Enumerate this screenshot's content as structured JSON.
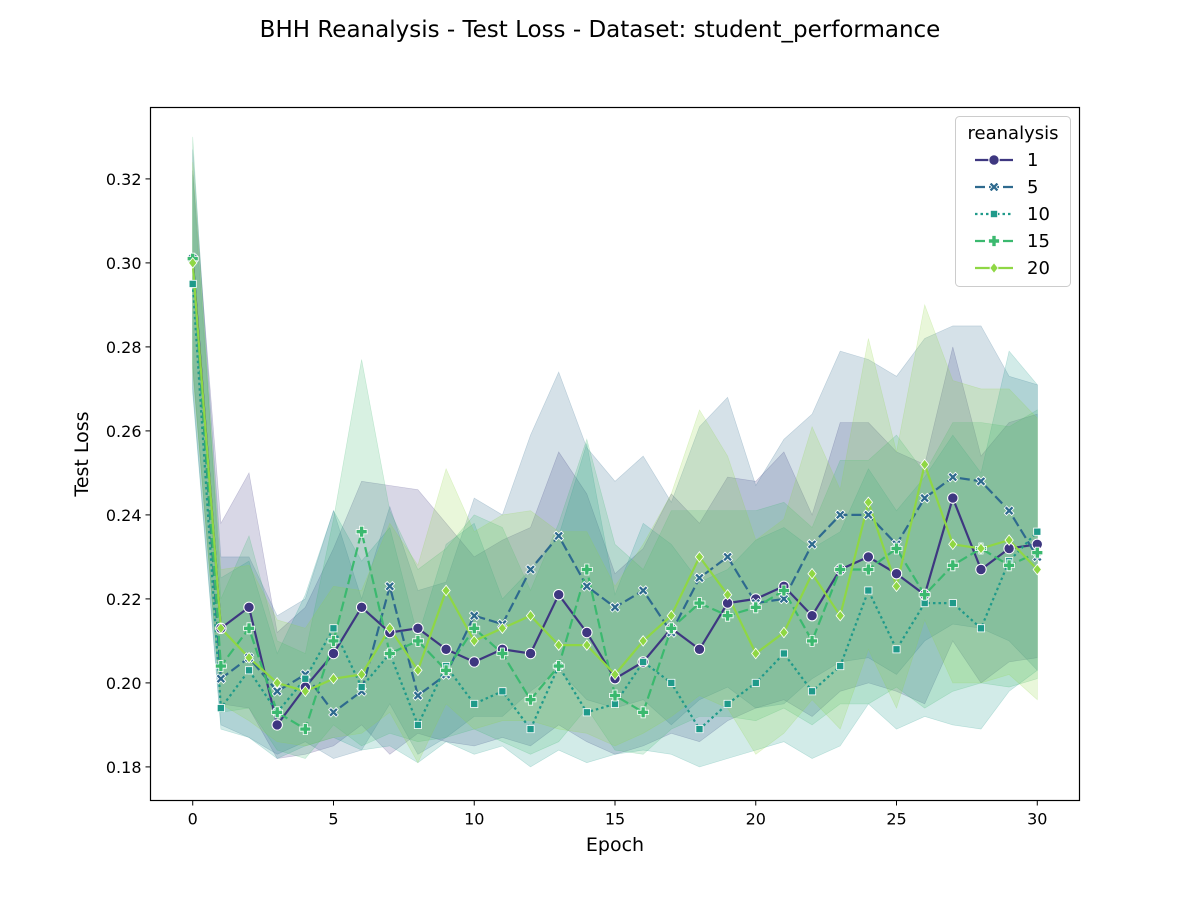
{
  "chart_data": {
    "type": "line",
    "title": "BHH Reanalysis - Test Loss - Dataset: student_performance",
    "xlabel": "Epoch",
    "ylabel": "Test Loss",
    "xlim": [
      -1.5,
      31.5
    ],
    "ylim": [
      0.172,
      0.337
    ],
    "xticks": [
      0,
      5,
      10,
      15,
      20,
      25,
      30
    ],
    "yticks": [
      0.18,
      0.2,
      0.22,
      0.24,
      0.26,
      0.28,
      0.3,
      0.32
    ],
    "ytick_labels": [
      "0.18",
      "0.20",
      "0.22",
      "0.24",
      "0.26",
      "0.28",
      "0.30",
      "0.32"
    ],
    "legend_title": "reanalysis",
    "legend_position": "top-right",
    "x": [
      0,
      1,
      2,
      3,
      4,
      5,
      6,
      7,
      8,
      9,
      10,
      11,
      12,
      13,
      14,
      15,
      16,
      17,
      18,
      19,
      20,
      21,
      22,
      23,
      24,
      25,
      26,
      27,
      28,
      29,
      30
    ],
    "series": [
      {
        "name": "1",
        "color": "#3e3780",
        "dash": "solid",
        "marker": "circle",
        "values": [
          0.301,
          0.213,
          0.218,
          0.19,
          0.199,
          0.207,
          0.218,
          0.212,
          0.213,
          0.208,
          0.205,
          0.208,
          0.207,
          0.221,
          0.212,
          0.201,
          0.205,
          0.213,
          0.208,
          0.219,
          0.22,
          0.223,
          0.216,
          0.227,
          0.23,
          0.226,
          0.221,
          0.244,
          0.227,
          0.232,
          0.233
        ],
        "lower": [
          0.275,
          0.195,
          0.194,
          0.182,
          0.183,
          0.185,
          0.19,
          0.183,
          0.188,
          0.186,
          0.185,
          0.187,
          0.185,
          0.19,
          0.186,
          0.183,
          0.185,
          0.188,
          0.186,
          0.191,
          0.194,
          0.196,
          0.192,
          0.198,
          0.2,
          0.198,
          0.195,
          0.21,
          0.2,
          0.205,
          0.206
        ],
        "upper": [
          0.322,
          0.238,
          0.25,
          0.212,
          0.218,
          0.232,
          0.248,
          0.247,
          0.246,
          0.238,
          0.23,
          0.234,
          0.237,
          0.255,
          0.245,
          0.226,
          0.232,
          0.245,
          0.238,
          0.249,
          0.248,
          0.255,
          0.24,
          0.262,
          0.262,
          0.255,
          0.252,
          0.28,
          0.254,
          0.262,
          0.264
        ]
      },
      {
        "name": "5",
        "color": "#2e6a8e",
        "dash": "dashed",
        "marker": "x",
        "values": [
          0.301,
          0.201,
          0.206,
          0.198,
          0.202,
          0.193,
          0.198,
          0.223,
          0.197,
          0.202,
          0.216,
          0.214,
          0.227,
          0.235,
          0.223,
          0.218,
          0.222,
          0.212,
          0.225,
          0.23,
          0.219,
          0.22,
          0.233,
          0.24,
          0.24,
          0.233,
          0.244,
          0.249,
          0.248,
          0.241,
          0.23
        ],
        "lower": [
          0.27,
          0.19,
          0.187,
          0.183,
          0.186,
          0.182,
          0.184,
          0.195,
          0.183,
          0.187,
          0.192,
          0.192,
          0.198,
          0.203,
          0.196,
          0.194,
          0.196,
          0.19,
          0.196,
          0.199,
          0.194,
          0.195,
          0.201,
          0.205,
          0.206,
          0.202,
          0.21,
          0.214,
          0.213,
          0.21,
          0.203
        ],
        "upper": [
          0.327,
          0.23,
          0.23,
          0.216,
          0.22,
          0.241,
          0.22,
          0.242,
          0.222,
          0.224,
          0.244,
          0.24,
          0.259,
          0.274,
          0.256,
          0.248,
          0.254,
          0.243,
          0.261,
          0.268,
          0.247,
          0.258,
          0.264,
          0.279,
          0.277,
          0.273,
          0.282,
          0.285,
          0.285,
          0.273,
          0.271
        ]
      },
      {
        "name": "10",
        "color": "#1f9a8a",
        "dash": "dotted",
        "marker": "square",
        "values": [
          0.295,
          0.194,
          0.203,
          0.193,
          0.201,
          0.213,
          0.199,
          0.207,
          0.19,
          0.204,
          0.195,
          0.198,
          0.189,
          0.204,
          0.193,
          0.195,
          0.205,
          0.2,
          0.189,
          0.195,
          0.2,
          0.207,
          0.198,
          0.204,
          0.222,
          0.208,
          0.219,
          0.219,
          0.213,
          0.229,
          0.236
        ],
        "lower": [
          0.269,
          0.189,
          0.187,
          0.182,
          0.185,
          0.187,
          0.184,
          0.185,
          0.181,
          0.186,
          0.183,
          0.185,
          0.18,
          0.184,
          0.181,
          0.183,
          0.184,
          0.183,
          0.18,
          0.182,
          0.184,
          0.186,
          0.182,
          0.185,
          0.195,
          0.189,
          0.192,
          0.19,
          0.189,
          0.198,
          0.203
        ],
        "upper": [
          0.321,
          0.225,
          0.229,
          0.207,
          0.221,
          0.241,
          0.229,
          0.237,
          0.211,
          0.233,
          0.238,
          0.22,
          0.227,
          0.235,
          0.257,
          0.221,
          0.238,
          0.233,
          0.224,
          0.227,
          0.234,
          0.237,
          0.232,
          0.236,
          0.251,
          0.241,
          0.249,
          0.259,
          0.25,
          0.279,
          0.271
        ]
      },
      {
        "name": "15",
        "color": "#3bb96f",
        "dash": "dashed",
        "marker": "plus",
        "values": [
          0.301,
          0.204,
          0.213,
          0.193,
          0.189,
          0.21,
          0.236,
          0.207,
          0.21,
          0.203,
          0.213,
          0.207,
          0.196,
          0.204,
          0.227,
          0.197,
          0.193,
          0.213,
          0.219,
          0.216,
          0.218,
          0.222,
          0.21,
          0.227,
          0.227,
          0.232,
          0.221,
          0.228,
          0.232,
          0.228,
          0.231
        ],
        "lower": [
          0.276,
          0.193,
          0.194,
          0.184,
          0.182,
          0.19,
          0.185,
          0.188,
          0.186,
          0.187,
          0.189,
          0.186,
          0.183,
          0.186,
          0.194,
          0.184,
          0.183,
          0.189,
          0.192,
          0.192,
          0.191,
          0.194,
          0.19,
          0.195,
          0.195,
          0.199,
          0.194,
          0.198,
          0.2,
          0.199,
          0.201
        ],
        "upper": [
          0.33,
          0.22,
          0.235,
          0.21,
          0.207,
          0.239,
          0.277,
          0.241,
          0.227,
          0.232,
          0.24,
          0.237,
          0.222,
          0.238,
          0.258,
          0.233,
          0.227,
          0.241,
          0.241,
          0.241,
          0.241,
          0.243,
          0.237,
          0.253,
          0.253,
          0.259,
          0.25,
          0.262,
          0.262,
          0.261,
          0.265
        ]
      },
      {
        "name": "20",
        "color": "#8fd744",
        "dash": "solid",
        "marker": "diamond",
        "values": [
          0.3,
          0.213,
          0.206,
          0.2,
          0.198,
          0.201,
          0.202,
          0.213,
          0.203,
          0.222,
          0.21,
          0.213,
          0.216,
          0.209,
          0.209,
          0.202,
          0.21,
          0.216,
          0.23,
          0.221,
          0.207,
          0.212,
          0.226,
          0.216,
          0.243,
          0.223,
          0.252,
          0.233,
          0.232,
          0.234,
          0.227
        ],
        "lower": [
          0.274,
          0.195,
          0.191,
          0.186,
          0.185,
          0.187,
          0.188,
          0.193,
          0.181,
          0.195,
          0.189,
          0.191,
          0.191,
          0.189,
          0.188,
          0.185,
          0.188,
          0.192,
          0.197,
          0.194,
          0.183,
          0.188,
          0.196,
          0.189,
          0.208,
          0.194,
          0.215,
          0.2,
          0.2,
          0.202,
          0.196
        ],
        "upper": [
          0.324,
          0.227,
          0.228,
          0.215,
          0.213,
          0.223,
          0.222,
          0.238,
          0.228,
          0.251,
          0.236,
          0.24,
          0.241,
          0.236,
          0.236,
          0.223,
          0.233,
          0.245,
          0.265,
          0.254,
          0.234,
          0.239,
          0.261,
          0.246,
          0.282,
          0.255,
          0.29,
          0.272,
          0.27,
          0.27,
          0.263
        ]
      }
    ]
  }
}
